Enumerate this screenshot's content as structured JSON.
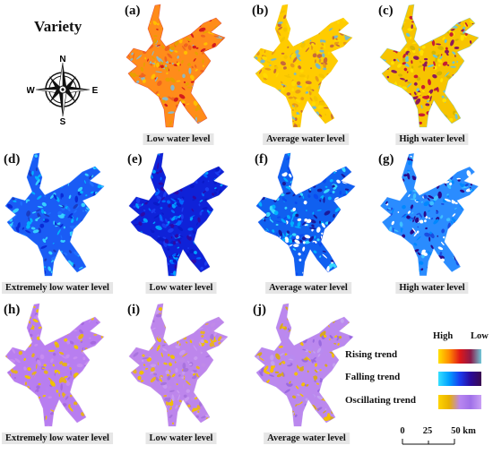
{
  "title": "Variety",
  "compass": {
    "n": "N",
    "s": "S",
    "e": "E",
    "w": "W"
  },
  "panels": [
    {
      "tag": "(a)",
      "caption": "Low water level",
      "scheme": "rising",
      "palette": [
        "#d41c1c",
        "#f0641e",
        "#ffbf00",
        "#e8a000",
        "#8bb8c8"
      ],
      "base": "#ff8c1a"
    },
    {
      "tag": "(b)",
      "caption": "Average water level",
      "scheme": "rising",
      "palette": [
        "#f5c400",
        "#ffd900",
        "#e89b18",
        "#7ab8c8",
        "#c86a3a"
      ],
      "base": "#ffcc00"
    },
    {
      "tag": "(c)",
      "caption": "High water level",
      "scheme": "rising",
      "palette": [
        "#6ec4d0",
        "#d6b400",
        "#c81e30",
        "#8c1a5a",
        "#ffe000"
      ],
      "base": "#f7c400"
    },
    {
      "tag": "(d)",
      "caption": "Extremely low water level",
      "scheme": "falling",
      "palette": [
        "#1e6fff",
        "#00b4ff",
        "#0a2bd6",
        "#36d0ff",
        "#1a3cc0"
      ],
      "base": "#1a5cf5"
    },
    {
      "tag": "(e)",
      "caption": "Low water level",
      "scheme": "falling",
      "palette": [
        "#0a1ac8",
        "#1a3cf0",
        "#0066ff",
        "#2e0aa8",
        "#00a0ff"
      ],
      "base": "#0f22d8"
    },
    {
      "tag": "(f)",
      "caption": "Average water level",
      "scheme": "falling",
      "palette": [
        "#0a4bf0",
        "#00b0ff",
        "#ffffff",
        "#1a1a9a",
        "#38d8ff"
      ],
      "base": "#1060f0"
    },
    {
      "tag": "(g)",
      "caption": "High water level",
      "scheme": "falling",
      "palette": [
        "#ffffff",
        "#0088ff",
        "#2a0a8a",
        "#3fc0ff",
        "#1a4ce0"
      ],
      "base": "#2a8cff"
    },
    {
      "tag": "(h)",
      "caption": "Extremely low water level",
      "scheme": "oscillating",
      "palette": [
        "#c68cf0",
        "#f0c400",
        "#a66ae0",
        "#e6b020",
        "#b880f0"
      ],
      "base": "#b87ef0"
    },
    {
      "tag": "(i)",
      "caption": "Low water level",
      "scheme": "oscillating",
      "palette": [
        "#c08ae8",
        "#f0c000",
        "#a873de",
        "#e8b02a",
        "#c99af0"
      ],
      "base": "#bd86ec"
    },
    {
      "tag": "(j)",
      "caption": "Average water level",
      "scheme": "oscillating",
      "palette": [
        "#b88af0",
        "#f5c000",
        "#9a6ae0",
        "#d8a820",
        "#c4a0f0"
      ],
      "base": "#bb88ee"
    }
  ],
  "legend": {
    "high": "High",
    "low": "Low",
    "items": [
      {
        "label": "Rising trend",
        "colors": [
          "#ffe000",
          "#ff8c00",
          "#e01818",
          "#8c1a4a",
          "#6ec8d8"
        ]
      },
      {
        "label": "Falling trend",
        "colors": [
          "#36e0ff",
          "#00a0ff",
          "#1a3cf0",
          "#2a0a9a",
          "#3a0a50"
        ]
      },
      {
        "label": "Oscillating trend",
        "colors": [
          "#ffd400",
          "#e8b000",
          "#b886f0",
          "#a070e8",
          "#c9a0f5"
        ]
      }
    ]
  },
  "scale": {
    "ticks": [
      "0",
      "25",
      "50 km"
    ]
  }
}
